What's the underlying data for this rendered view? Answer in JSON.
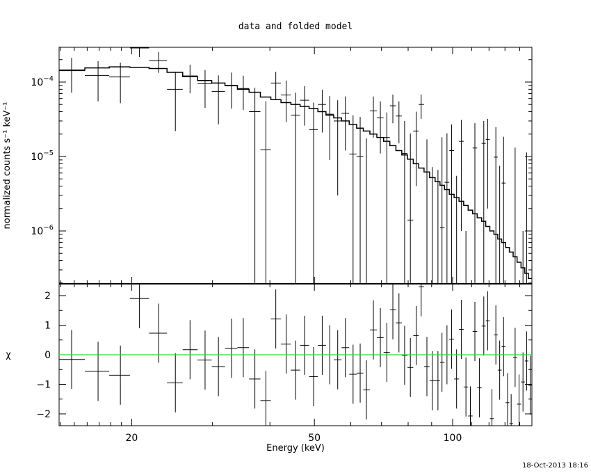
{
  "chart_data": [
    {
      "type": "scatter",
      "panel": "top",
      "title": "data and folded model",
      "xlabel": "Energy (keV)",
      "ylabel": "normalized counts s⁻¹ keV⁻¹",
      "xscale": "log",
      "yscale": "log",
      "xlim": [
        13.9,
        148.8
      ],
      "ylim": [
        1.95e-07,
        0.000293
      ],
      "ytick_labels": [
        {
          "v": 0.0001,
          "base": "10",
          "exp": "−4"
        },
        {
          "v": 1e-05,
          "base": "10",
          "exp": "−5"
        },
        {
          "v": 1e-06,
          "base": "10",
          "exp": "−6"
        }
      ],
      "data_color": "#000000",
      "model_color": "#000000",
      "energy": [
        14.8,
        16.9,
        18.9,
        20.8,
        22.9,
        24.9,
        26.8,
        28.9,
        30.9,
        33.0,
        35.0,
        37.1,
        39.2,
        41.2,
        43.4,
        45.5,
        47.6,
        49.8,
        52.0,
        54.0,
        56.2,
        58.4,
        60.7,
        62.9,
        64.9,
        67.2,
        69.6,
        71.9,
        74.1,
        76.4,
        78.6,
        80.9,
        83.3,
        85.4,
        87.9,
        90.3,
        92.9,
        94.8,
        97.2,
        99.5,
        102.0,
        104.5,
        106.9,
        109.3,
        111.8,
        114.4,
        116.9,
        119.2,
        121.8,
        124.2,
        126.6,
        129.1,
        131.7,
        134.1,
        136.8,
        139.5,
        142.3,
        144.9,
        147.5
      ],
      "y": [
        0.000142,
        0.000123,
        0.000117,
        0.000287,
        0.000193,
        8e-05,
        0.000121,
        9.5e-05,
        7.5e-05,
        8.9e-05,
        8.2e-05,
        4e-05,
        1.23e-05,
        9.7e-05,
        6.7e-05,
        3.6e-05,
        5.7e-05,
        2.3e-05,
        5e-05,
        3.7e-05,
        3e-05,
        3.8e-05,
        1.08e-05,
        1e-05,
        -5.4e-06,
        4.1e-05,
        3.3e-05,
        1.8e-05,
        4.8e-05,
        3.5e-05,
        1.1e-05,
        1.4e-06,
        2.2e-05,
        5e-05,
        -1e-06,
        -9.8e-06,
        -1.04e-05,
        1.1e-06,
        4.5e-06,
        1.2e-05,
        -9.5e-06,
        1.6e-05,
        -1.4e-05,
        -2.9e-05,
        1.3e-05,
        -1.5e-05,
        1.5e-05,
        1.7e-05,
        -3.1e-05,
        9.8e-06,
        -6.5e-06,
        4.4e-06,
        -2.2e-05,
        -3.2e-05,
        -8e-07,
        -2.3e-05,
        -1.3e-05,
        -2.7e-06,
        -1.4e-05
      ],
      "yerr": [
        7e-05,
        6.8e-05,
        6.5e-05,
        7e-05,
        6e-05,
        5.8e-05,
        5e-05,
        5e-05,
        4.8e-05,
        4.5e-05,
        4e-05,
        4.4e-05,
        4.3e-05,
        4e-05,
        3.8e-05,
        3.6e-05,
        3.1e-05,
        3e-05,
        2.9e-05,
        2.8e-05,
        2.7e-05,
        2.6e-05,
        2.5e-05,
        2.4e-05,
        2.3e-05,
        2.3e-05,
        2.2e-05,
        2.1e-05,
        2e-05,
        2e-05,
        1.9e-05,
        1.9e-05,
        1.8e-05,
        1.8e-05,
        1.8e-05,
        1.7e-05,
        1.7e-05,
        1.7e-05,
        1.6e-05,
        1.5e-05,
        1.5e-05,
        1.5e-05,
        1.5e-05,
        1.5e-05,
        1.5e-05,
        1.5e-05,
        1.5e-05,
        1.5e-05,
        1.5e-05,
        1.5e-05,
        1.4e-05,
        1.4e-05,
        1.4e-05,
        1.4e-05,
        1.4e-05,
        1.4e-05,
        1.4e-05,
        1.4e-05,
        1.4e-05
      ],
      "model": [
        0.000145,
        0.000155,
        0.00016,
        0.000158,
        0.000152,
        0.000135,
        0.000118,
        0.000105,
        9.7e-05,
        9e-05,
        8e-05,
        7.3e-05,
        6.3e-05,
        5.8e-05,
        5.3e-05,
        5e-05,
        4.7e-05,
        4.4e-05,
        4e-05,
        3.6e-05,
        3.3e-05,
        3e-05,
        2.7e-05,
        2.4e-05,
        2.2e-05,
        2e-05,
        1.8e-05,
        1.6e-05,
        1.4e-05,
        1.2e-05,
        1.05e-05,
        9.2e-06,
        8e-06,
        7e-06,
        6.2e-06,
        5.2e-06,
        4.6e-06,
        4.1e-06,
        3.6e-06,
        3.1e-06,
        2.8e-06,
        2.5e-06,
        2.2e-06,
        1.9e-06,
        1.7e-06,
        1.5e-06,
        1.35e-06,
        1.15e-06,
        1e-06,
        9e-07,
        7.8e-07,
        7e-07,
        6e-07,
        5.2e-07,
        4.5e-07,
        3.8e-07,
        3.2e-07,
        2.7e-07,
        2.3e-07
      ]
    },
    {
      "type": "scatter",
      "panel": "bottom",
      "ylabel": "χ",
      "xlabel": "Energy (keV)",
      "xscale": "log",
      "xlim": [
        13.9,
        148.8
      ],
      "ylim": [
        -2.4,
        2.4
      ],
      "ytick_labels": [
        "2",
        "1",
        "0",
        "−1",
        "−2"
      ],
      "xtick_labels": [
        {
          "v": 20,
          "t": "20"
        },
        {
          "v": 50,
          "t": "50"
        },
        {
          "v": 100,
          "t": "100"
        }
      ],
      "zero_line_color": "#00ff00",
      "chi": [
        -0.16,
        -0.56,
        -0.69,
        1.9,
        0.73,
        -0.95,
        0.17,
        -0.18,
        -0.4,
        0.22,
        0.24,
        -0.82,
        -1.55,
        1.21,
        0.36,
        -0.52,
        0.32,
        -0.74,
        0.32,
        0.0,
        -0.17,
        0.24,
        -0.66,
        -0.62,
        -1.19,
        0.84,
        0.58,
        0.08,
        1.52,
        1.08,
        -0.02,
        -0.43,
        0.65,
        2.3,
        -0.4,
        -0.88,
        -0.88,
        -0.26,
        0.0,
        0.53,
        -0.82,
        0.86,
        -1.09,
        -2.07,
        0.79,
        -1.12,
        0.97,
        1.15,
        -2.16,
        0.67,
        -0.52,
        0.27,
        -1.62,
        -2.33,
        -0.09,
        -1.67,
        -0.92,
        -0.21,
        -1.03
      ]
    }
  ],
  "timestamp": "18-Oct-2013 18:16"
}
